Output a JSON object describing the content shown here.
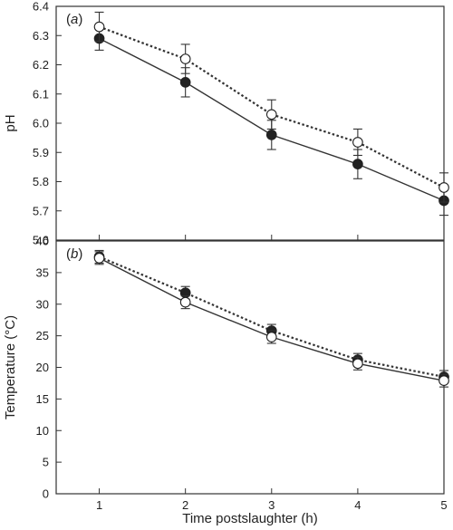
{
  "chart_data": [
    {
      "type": "line",
      "panel_label": [
        "(",
        "a",
        ")"
      ],
      "xlabel": "Time postslaughter (h)",
      "ylabel": "pH",
      "x": [
        1,
        2,
        3,
        4,
        5
      ],
      "xlim": [
        0.5,
        5
      ],
      "ylim": [
        5.6,
        6.4
      ],
      "yticks": [
        "5.6",
        "5.7",
        "5.8",
        "5.9",
        "6.0",
        "6.1",
        "6.2",
        "6.3",
        "6.4"
      ],
      "series": [
        {
          "marker": "filled-circle",
          "line_style": "solid",
          "color": "#333333",
          "values": [
            6.29,
            6.14,
            5.96,
            5.86,
            5.735
          ],
          "errors": [
            0.04,
            0.05,
            0.05,
            0.05,
            0.05
          ]
        },
        {
          "marker": "open-circle",
          "line_style": "dotted",
          "color": "#333333",
          "values": [
            6.33,
            6.22,
            6.03,
            5.935,
            5.78
          ],
          "errors": [
            0.05,
            0.05,
            0.05,
            0.045,
            0.05
          ]
        }
      ],
      "grid": false
    },
    {
      "type": "line",
      "panel_label": [
        "(",
        "b",
        ")"
      ],
      "xlabel": "Time postslaughter (h)",
      "ylabel": "Temperature (°C)",
      "x": [
        1,
        2,
        3,
        4,
        5
      ],
      "xticks": [
        "1",
        "2",
        "3",
        "4",
        "5"
      ],
      "xlim": [
        0.5,
        5
      ],
      "ylim": [
        0,
        40
      ],
      "yticks": [
        "0",
        "5",
        "10",
        "15",
        "20",
        "25",
        "30",
        "35",
        "40"
      ],
      "series": [
        {
          "marker": "filled-circle",
          "line_style": "dotted",
          "color": "#333333",
          "values": [
            37.5,
            31.8,
            25.8,
            21.2,
            18.5
          ],
          "errors": [
            1.0,
            1.0,
            1.0,
            1.0,
            1.0
          ]
        },
        {
          "marker": "open-circle",
          "line_style": "solid",
          "color": "#333333",
          "values": [
            37.3,
            30.3,
            24.8,
            20.6,
            17.9
          ],
          "errors": [
            1.0,
            1.0,
            1.0,
            1.0,
            1.0
          ]
        }
      ],
      "grid": false
    }
  ]
}
